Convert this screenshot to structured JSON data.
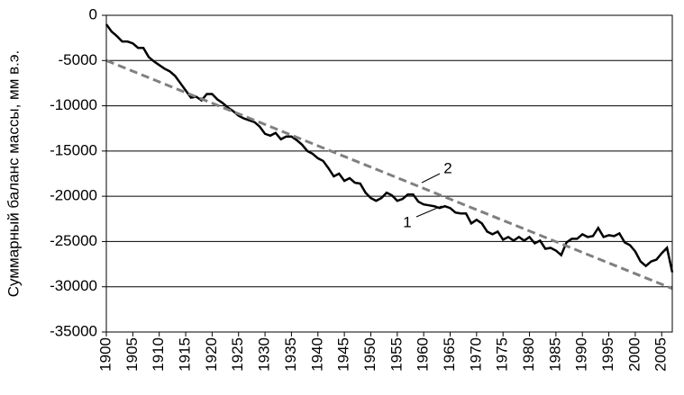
{
  "chart_data": {
    "type": "line",
    "y_label": "Суммарный баланс массы, мм в.э.",
    "xlim": [
      1900,
      2007
    ],
    "ylim": [
      -35000,
      0
    ],
    "xticks": [
      1900,
      1905,
      1910,
      1915,
      1920,
      1925,
      1930,
      1935,
      1940,
      1945,
      1950,
      1955,
      1960,
      1965,
      1970,
      1975,
      1980,
      1985,
      1990,
      1995,
      2000,
      2005
    ],
    "yticks": [
      0,
      -5000,
      -10000,
      -15000,
      -20000,
      -25000,
      -30000,
      -35000
    ],
    "grid": true,
    "series": [
      {
        "name": "1",
        "color": "#000000",
        "dashed": false,
        "x": [
          1900,
          1901,
          1902,
          1903,
          1904,
          1905,
          1906,
          1907,
          1908,
          1909,
          1910,
          1911,
          1912,
          1913,
          1914,
          1915,
          1916,
          1917,
          1918,
          1919,
          1920,
          1921,
          1922,
          1923,
          1924,
          1925,
          1926,
          1927,
          1928,
          1929,
          1930,
          1931,
          1932,
          1933,
          1934,
          1935,
          1936,
          1937,
          1938,
          1939,
          1940,
          1941,
          1942,
          1943,
          1944,
          1945,
          1946,
          1947,
          1948,
          1949,
          1950,
          1951,
          1952,
          1953,
          1954,
          1955,
          1956,
          1957,
          1958,
          1959,
          1960,
          1961,
          1962,
          1963,
          1964,
          1965,
          1966,
          1967,
          1968,
          1969,
          1970,
          1971,
          1972,
          1973,
          1974,
          1975,
          1976,
          1977,
          1978,
          1979,
          1980,
          1981,
          1982,
          1983,
          1984,
          1985,
          1986,
          1987,
          1988,
          1989,
          1990,
          1991,
          1992,
          1993,
          1994,
          1995,
          1996,
          1997,
          1998,
          1999,
          2000,
          2001,
          2002,
          2003,
          2004,
          2005,
          2006,
          2007
        ],
        "values": [
          -1000,
          -1800,
          -2300,
          -2900,
          -2900,
          -3100,
          -3600,
          -3600,
          -4600,
          -5100,
          -5500,
          -5900,
          -6200,
          -6700,
          -7500,
          -8300,
          -9100,
          -9000,
          -9400,
          -8700,
          -8700,
          -9300,
          -9700,
          -10200,
          -10600,
          -11100,
          -11400,
          -11600,
          -11800,
          -12300,
          -13100,
          -13300,
          -13000,
          -13700,
          -13400,
          -13400,
          -13800,
          -14300,
          -15000,
          -15300,
          -15800,
          -16100,
          -16900,
          -17800,
          -17500,
          -18300,
          -18000,
          -18500,
          -18600,
          -19600,
          -20200,
          -20500,
          -20200,
          -19600,
          -19900,
          -20500,
          -20300,
          -19800,
          -19800,
          -20600,
          -20900,
          -21000,
          -21100,
          -21300,
          -21100,
          -21300,
          -21800,
          -21900,
          -21900,
          -23000,
          -22600,
          -23000,
          -23900,
          -24200,
          -23900,
          -24800,
          -24500,
          -24900,
          -24500,
          -24900,
          -24500,
          -25200,
          -24900,
          -25800,
          -25700,
          -26000,
          -26500,
          -25100,
          -24700,
          -24700,
          -24200,
          -24500,
          -24400,
          -23500,
          -24500,
          -24300,
          -24400,
          -24100,
          -25100,
          -25400,
          -26100,
          -27200,
          -27700,
          -27200,
          -27000,
          -26300,
          -25700,
          -28400
        ]
      },
      {
        "name": "2",
        "color": "#808080",
        "dashed": true,
        "x": [
          1900,
          2007
        ],
        "values": [
          -5000,
          -30200
        ]
      }
    ]
  }
}
